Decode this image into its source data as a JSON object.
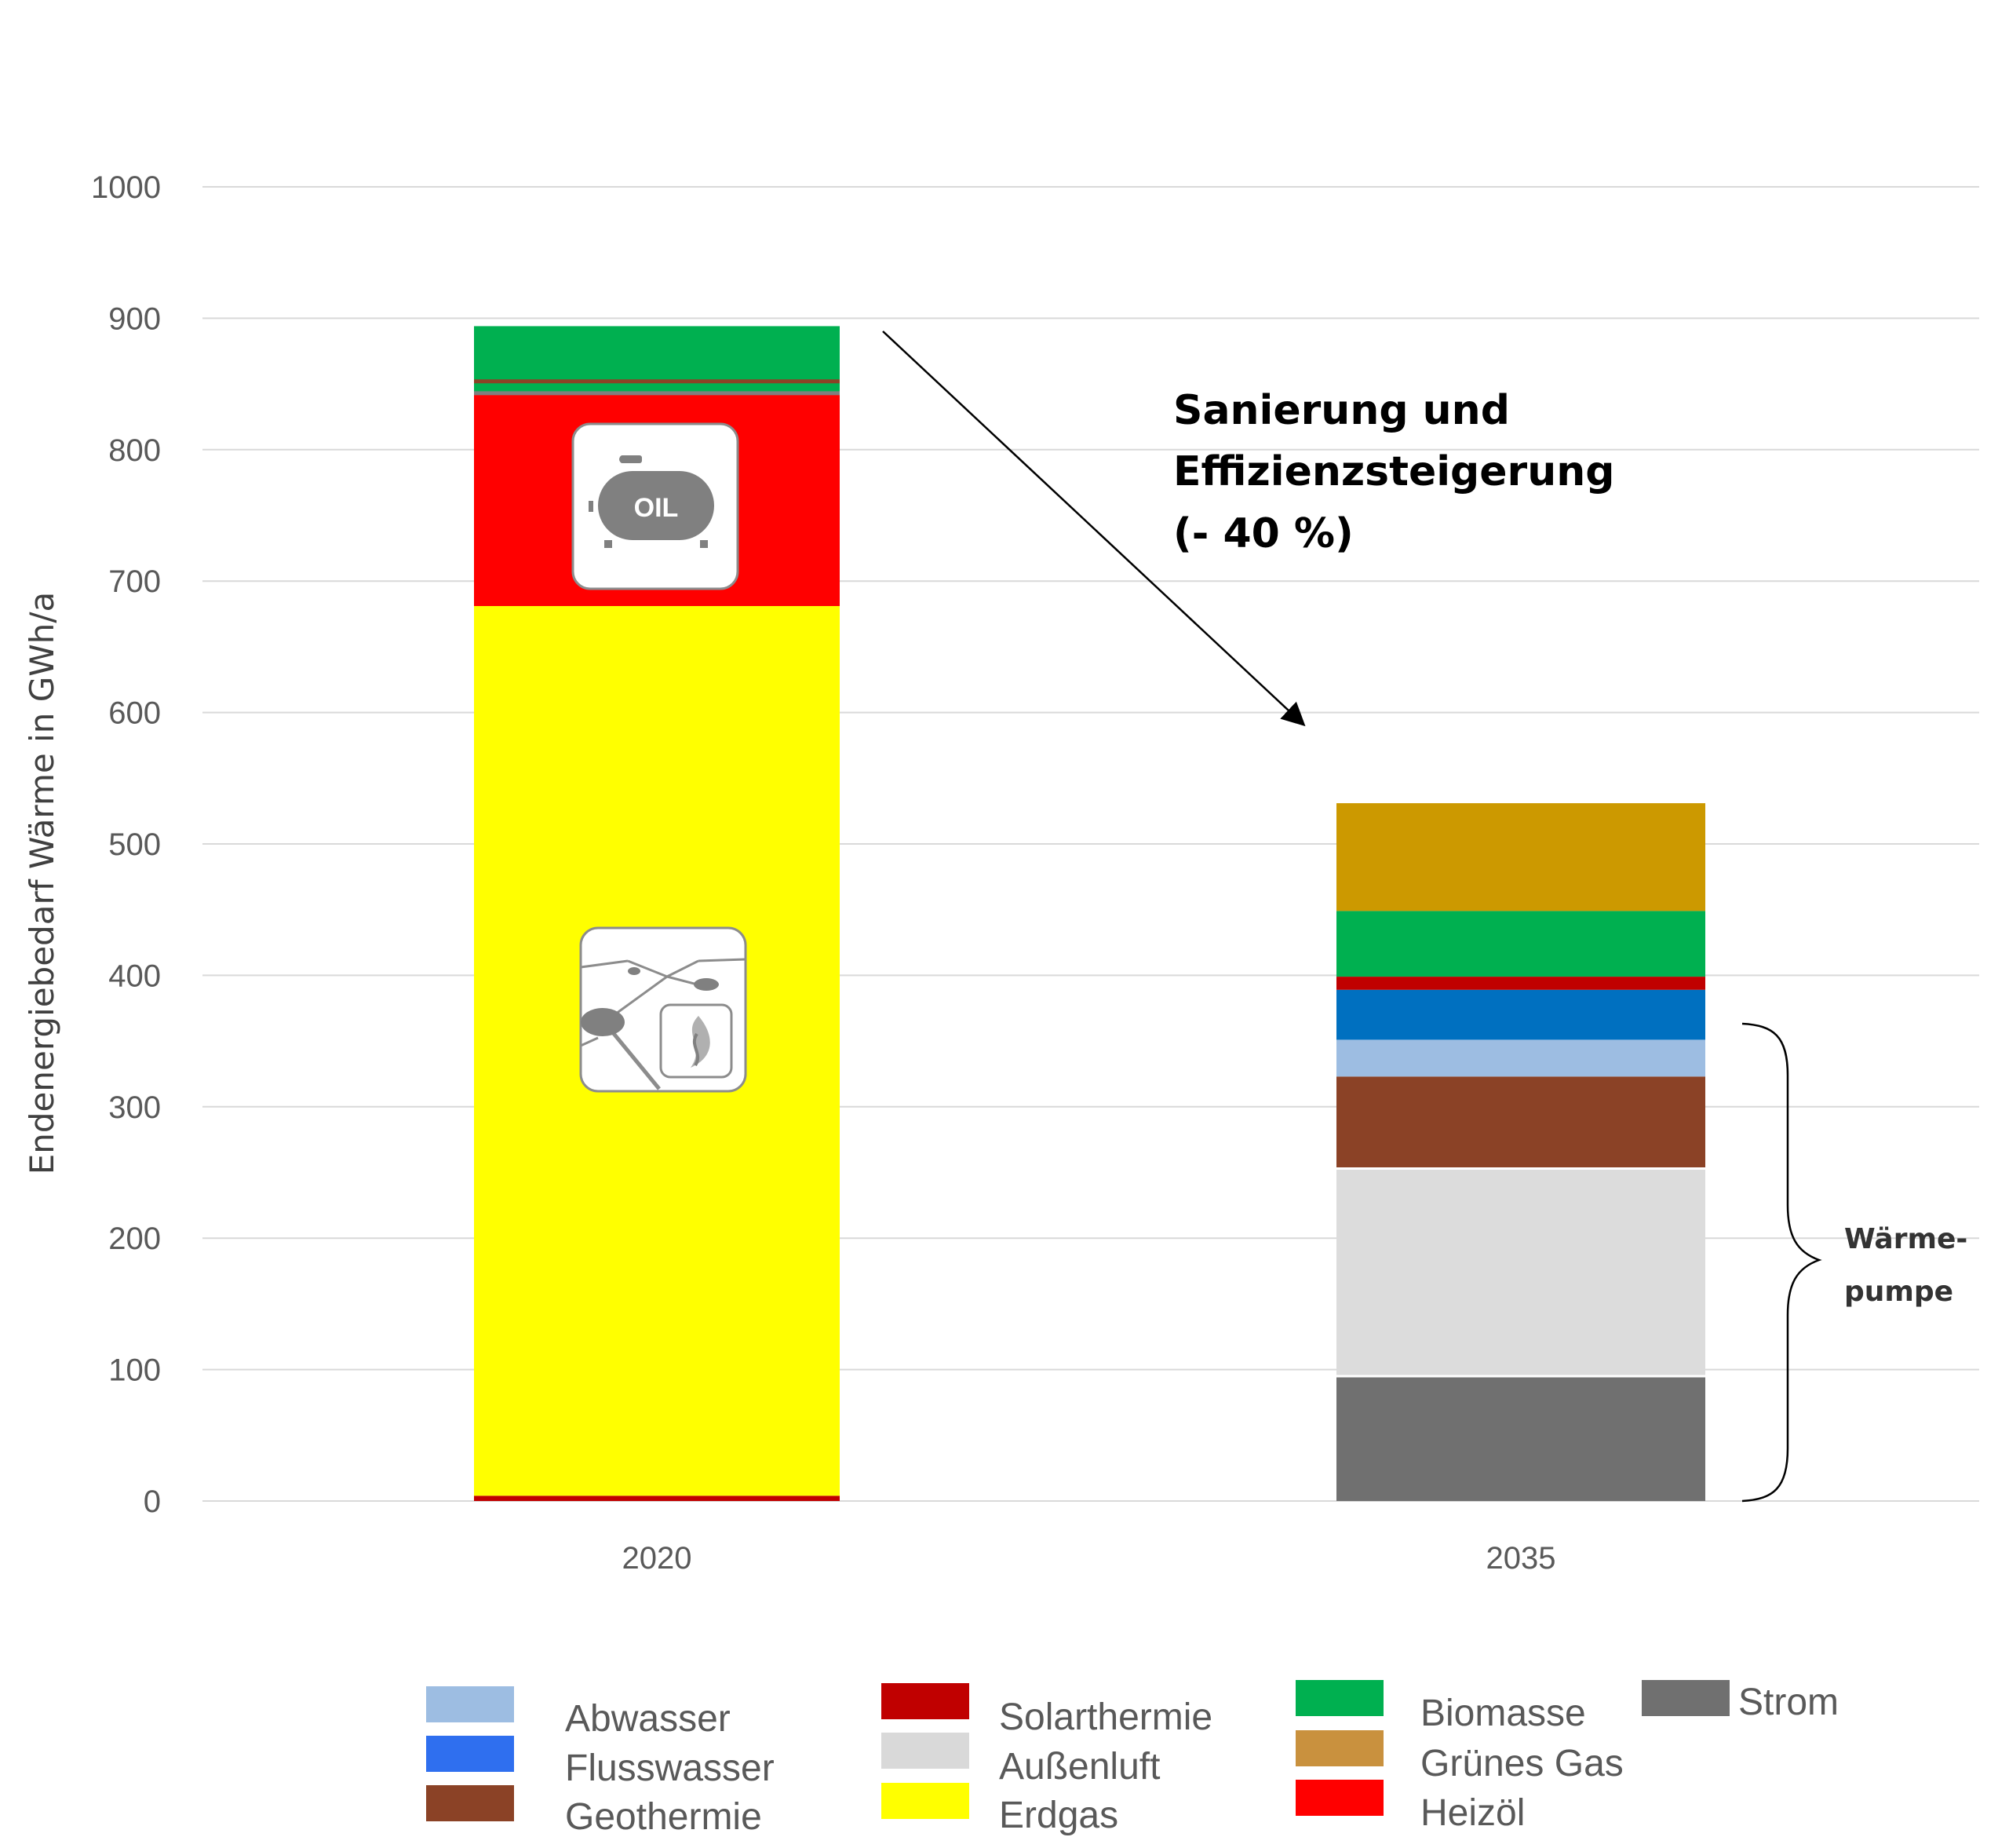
{
  "chart_data": {
    "type": "bar",
    "stacked": true,
    "ylabel": "Endenergiebedarf Wärme in GWh/a",
    "ylim": [
      0,
      1000
    ],
    "yticks": [
      0,
      100,
      200,
      300,
      400,
      500,
      600,
      700,
      800,
      900,
      1000
    ],
    "grid": true,
    "categories": [
      "2020",
      "2035"
    ],
    "series": [
      {
        "name": "Strom",
        "color": "#707070",
        "values": [
          0,
          95
        ]
      },
      {
        "name": "Außenluft",
        "color": "#dcdcdc",
        "values": [
          0,
          158
        ]
      },
      {
        "name": "Geothermie",
        "color": "#8b4226",
        "values": [
          0,
          70
        ]
      },
      {
        "name": "Abwasser",
        "color": "#9dbde2",
        "values": [
          0,
          28
        ]
      },
      {
        "name": "Flusswasser",
        "color": "#0070c0",
        "values": [
          0,
          38
        ]
      },
      {
        "name": "Solarthermie",
        "color": "#c00000",
        "values": [
          4,
          10
        ]
      },
      {
        "name": "Erdgas",
        "color": "#ffff00",
        "values": [
          677,
          0
        ]
      },
      {
        "name": "Heizöl",
        "color": "#ff0000",
        "values": [
          163,
          0
        ]
      },
      {
        "name": "Biomasse",
        "color": "#00b050",
        "values": [
          50,
          50
        ]
      },
      {
        "name": "Grünes Gas",
        "color": "#cc9900",
        "values": [
          0,
          82
        ]
      }
    ],
    "annotations": {
      "arrow_label": [
        "Sanierung und",
        "Effizienzsteigerung",
        "(- 40 %)"
      ],
      "brace_label": [
        "Wärme-",
        "pumpe"
      ]
    },
    "icons": [
      "oil-tank-icon",
      "gas-network-icon"
    ],
    "legend": {
      "placement": "bottom",
      "entries": [
        {
          "label": "Abwasser",
          "color": "#9dbde2"
        },
        {
          "label": "Flusswasser",
          "color": "#2f6fef"
        },
        {
          "label": "Geothermie",
          "color": "#8b4226"
        },
        {
          "label": "Solarthermie",
          "color": "#c00000"
        },
        {
          "label": "Außenluft",
          "color": "#d9d9d9"
        },
        {
          "label": "Erdgas",
          "color": "#ffff00"
        },
        {
          "label": "Biomasse",
          "color": "#00b050"
        },
        {
          "label": "Grünes Gas",
          "color": "#c9913e"
        },
        {
          "label": "Heizöl",
          "color": "#ff0000"
        },
        {
          "label": "Strom",
          "color": "#707070"
        }
      ]
    }
  }
}
